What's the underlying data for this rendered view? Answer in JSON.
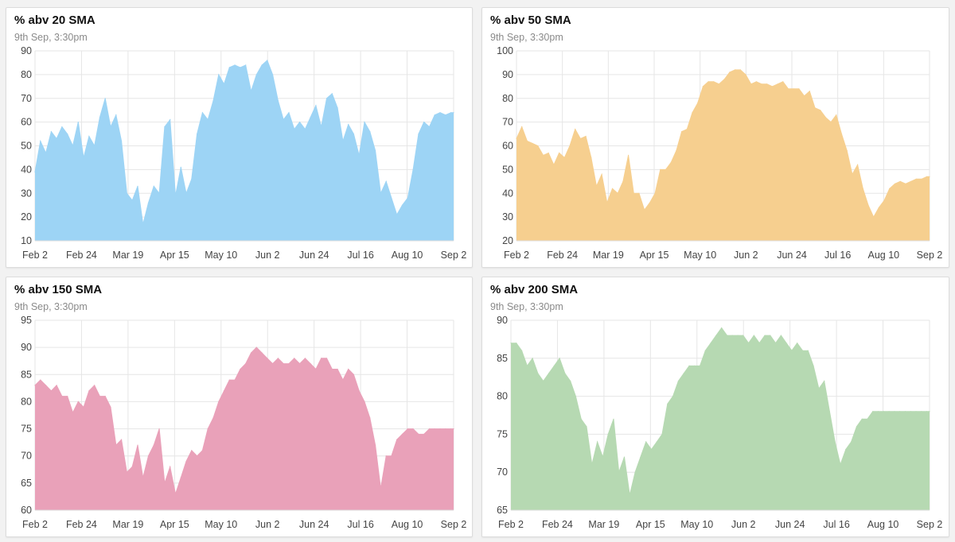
{
  "cards": [
    {
      "title": "% abv 20 SMA",
      "subtitle": "9th Sep, 3:30pm"
    },
    {
      "title": "% abv 50 SMA",
      "subtitle": "9th Sep, 3:30pm"
    },
    {
      "title": "% abv 150 SMA",
      "subtitle": "9th Sep, 3:30pm"
    },
    {
      "title": "% abv 200 SMA",
      "subtitle": "9th Sep, 3:30pm"
    }
  ],
  "chart_data": [
    {
      "type": "area",
      "title": "% abv 20 SMA",
      "subtitle": "9th Sep, 3:30pm",
      "color": "#9dd4f5",
      "ylim": [
        10,
        90
      ],
      "yticks": [
        10,
        20,
        30,
        40,
        50,
        60,
        70,
        80,
        90
      ],
      "xticks": [
        "Feb 2",
        "Feb 24",
        "Mar 19",
        "Apr 15",
        "May 10",
        "Jun 2",
        "Jun 24",
        "Jul 16",
        "Aug 10",
        "Sep 2"
      ],
      "grid": true,
      "x_range": [
        0,
        155
      ],
      "x": [
        0,
        2,
        4,
        6,
        8,
        10,
        12,
        14,
        16,
        18,
        20,
        22,
        24,
        26,
        28,
        30,
        32,
        34,
        36,
        38,
        40,
        42,
        44,
        46,
        48,
        50,
        52,
        54,
        56,
        58,
        60,
        62,
        64,
        66,
        68,
        70,
        72,
        74,
        76,
        78,
        80,
        82,
        84,
        86,
        88,
        90,
        92,
        94,
        96,
        98,
        100,
        102,
        104,
        106,
        108,
        110,
        112,
        114,
        116,
        118,
        120,
        122,
        124,
        126,
        128,
        130,
        132,
        134,
        136,
        138,
        140,
        142,
        144,
        146,
        148,
        150,
        152,
        154,
        155
      ],
      "values": [
        39,
        52,
        47,
        56,
        53,
        58,
        55,
        50,
        60,
        45,
        54,
        50,
        62,
        70,
        58,
        63,
        52,
        30,
        27,
        33,
        17,
        26,
        33,
        30,
        58,
        61,
        29,
        41,
        30,
        36,
        55,
        64,
        61,
        69,
        80,
        76,
        83,
        84,
        83,
        84,
        73,
        80,
        84,
        86,
        80,
        69,
        61,
        64,
        57,
        60,
        57,
        62,
        67,
        58,
        70,
        72,
        66,
        52,
        59,
        55,
        46,
        60,
        56,
        48,
        30,
        35,
        28,
        21,
        25,
        28,
        40,
        55,
        60,
        58,
        63,
        64,
        63,
        64,
        64
      ]
    },
    {
      "type": "area",
      "title": "% abv 50 SMA",
      "subtitle": "9th Sep, 3:30pm",
      "color": "#f6cf8f",
      "ylim": [
        20,
        100
      ],
      "yticks": [
        20,
        30,
        40,
        50,
        60,
        70,
        80,
        90,
        100
      ],
      "xticks": [
        "Feb 2",
        "Feb 24",
        "Mar 19",
        "Apr 15",
        "May 10",
        "Jun 2",
        "Jun 24",
        "Jul 16",
        "Aug 10",
        "Sep 2"
      ],
      "grid": true,
      "x_range": [
        0,
        155
      ],
      "x": [
        0,
        2,
        4,
        6,
        8,
        10,
        12,
        14,
        16,
        18,
        20,
        22,
        24,
        26,
        28,
        30,
        32,
        34,
        36,
        38,
        40,
        42,
        44,
        46,
        48,
        50,
        52,
        54,
        56,
        58,
        60,
        62,
        64,
        66,
        68,
        70,
        72,
        74,
        76,
        78,
        80,
        82,
        84,
        86,
        88,
        90,
        92,
        94,
        96,
        98,
        100,
        102,
        104,
        106,
        108,
        110,
        112,
        114,
        116,
        118,
        120,
        122,
        124,
        126,
        128,
        130,
        132,
        134,
        136,
        138,
        140,
        142,
        144,
        146,
        148,
        150,
        152,
        154,
        155
      ],
      "values": [
        63,
        68,
        62,
        61,
        60,
        56,
        57,
        52,
        57,
        55,
        60,
        67,
        63,
        64,
        55,
        43,
        48,
        36,
        42,
        40,
        45,
        56,
        40,
        40,
        33,
        36,
        40,
        50,
        50,
        53,
        58,
        66,
        67,
        74,
        78,
        85,
        87,
        87,
        86,
        88,
        91,
        92,
        92,
        90,
        86,
        87,
        86,
        86,
        85,
        86,
        87,
        84,
        84,
        84,
        81,
        83,
        76,
        75,
        72,
        70,
        73,
        65,
        58,
        48,
        52,
        42,
        35,
        30,
        34,
        37,
        42,
        44,
        45,
        44,
        45,
        46,
        46,
        47,
        47
      ]
    },
    {
      "type": "area",
      "title": "% abv 150 SMA",
      "subtitle": "9th Sep, 3:30pm",
      "color": "#e9a1b9",
      "ylim": [
        60,
        95
      ],
      "yticks": [
        60,
        65,
        70,
        75,
        80,
        85,
        90,
        95
      ],
      "xticks": [
        "Feb 2",
        "Feb 24",
        "Mar 19",
        "Apr 15",
        "May 10",
        "Jun 2",
        "Jun 24",
        "Jul 16",
        "Aug 10",
        "Sep 2"
      ],
      "grid": true,
      "x_range": [
        0,
        155
      ],
      "x": [
        0,
        2,
        4,
        6,
        8,
        10,
        12,
        14,
        16,
        18,
        20,
        22,
        24,
        26,
        28,
        30,
        32,
        34,
        36,
        38,
        40,
        42,
        44,
        46,
        48,
        50,
        52,
        54,
        56,
        58,
        60,
        62,
        64,
        66,
        68,
        70,
        72,
        74,
        76,
        78,
        80,
        82,
        84,
        86,
        88,
        90,
        92,
        94,
        96,
        98,
        100,
        102,
        104,
        106,
        108,
        110,
        112,
        114,
        116,
        118,
        120,
        122,
        124,
        126,
        128,
        130,
        132,
        134,
        136,
        138,
        140,
        142,
        144,
        146,
        148,
        150,
        152,
        154,
        155
      ],
      "values": [
        83,
        84,
        83,
        82,
        83,
        81,
        81,
        78,
        80,
        79,
        82,
        83,
        81,
        81,
        79,
        72,
        73,
        67,
        68,
        72,
        66,
        70,
        72,
        75,
        65,
        68,
        63,
        66,
        69,
        71,
        70,
        71,
        75,
        77,
        80,
        82,
        84,
        84,
        86,
        87,
        89,
        90,
        89,
        88,
        87,
        88,
        87,
        87,
        88,
        87,
        88,
        87,
        86,
        88,
        88,
        86,
        86,
        84,
        86,
        85,
        82,
        80,
        77,
        72,
        64,
        70,
        70,
        73,
        74,
        75,
        75,
        74,
        74,
        75,
        75,
        75,
        75,
        75,
        75
      ]
    },
    {
      "type": "area",
      "title": "% abv 200 SMA",
      "subtitle": "9th Sep, 3:30pm",
      "color": "#b6d9b2",
      "ylim": [
        65,
        90
      ],
      "yticks": [
        65,
        70,
        75,
        80,
        85,
        90
      ],
      "xticks": [
        "Feb 2",
        "Feb 24",
        "Mar 19",
        "Apr 15",
        "May 10",
        "Jun 2",
        "Jun 24",
        "Jul 16",
        "Aug 10",
        "Sep 2"
      ],
      "grid": true,
      "x_range": [
        0,
        155
      ],
      "x": [
        0,
        2,
        4,
        6,
        8,
        10,
        12,
        14,
        16,
        18,
        20,
        22,
        24,
        26,
        28,
        30,
        32,
        34,
        36,
        38,
        40,
        42,
        44,
        46,
        48,
        50,
        52,
        54,
        56,
        58,
        60,
        62,
        64,
        66,
        68,
        70,
        72,
        74,
        76,
        78,
        80,
        82,
        84,
        86,
        88,
        90,
        92,
        94,
        96,
        98,
        100,
        102,
        104,
        106,
        108,
        110,
        112,
        114,
        116,
        118,
        120,
        122,
        124,
        126,
        128,
        130,
        132,
        134,
        136,
        138,
        140,
        142,
        144,
        146,
        148,
        150,
        152,
        154,
        155
      ],
      "values": [
        87,
        87,
        86,
        84,
        85,
        83,
        82,
        83,
        84,
        85,
        83,
        82,
        80,
        77,
        76,
        71,
        74,
        72,
        75,
        77,
        70,
        72,
        67,
        70,
        72,
        74,
        73,
        74,
        75,
        79,
        80,
        82,
        83,
        84,
        84,
        84,
        86,
        87,
        88,
        89,
        88,
        88,
        88,
        88,
        87,
        88,
        87,
        88,
        88,
        87,
        88,
        87,
        86,
        87,
        86,
        86,
        84,
        81,
        82,
        78,
        74,
        71,
        73,
        74,
        76,
        77,
        77,
        78,
        78,
        78,
        78,
        78,
        78,
        78,
        78,
        78,
        78,
        78,
        78
      ]
    }
  ]
}
